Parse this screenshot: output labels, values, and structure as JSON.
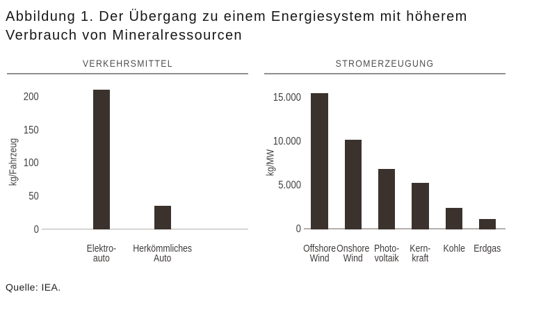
{
  "figure": {
    "title_line1": "Abbildung 1. Der Übergang zu einem Energiesystem mit höherem",
    "title_line2": "Verbrauch von Mineralressourcen",
    "source": "Quelle: IEA."
  },
  "colors": {
    "bar": "#3b322d",
    "axis_line": "#b4b0ad",
    "header_rule": "#8f8f8f"
  },
  "chart_data": [
    {
      "type": "bar",
      "title": "VERKEHRSMITTEL",
      "ylabel": "kg/Fahrzeug",
      "xlabel": "",
      "categories": [
        [
          "Elektro-",
          "auto"
        ],
        [
          "Herkömmliches",
          "Auto"
        ]
      ],
      "values": [
        210,
        35
      ],
      "ylim": [
        0,
        200
      ],
      "yticks": [
        0,
        50,
        100,
        150,
        200
      ],
      "ytick_labels": [
        "0",
        "50",
        "100",
        "150",
        "200"
      ],
      "grid": false,
      "legend": "none"
    },
    {
      "type": "bar",
      "title": "STROMERZEUGUNG",
      "ylabel": "kg/MW",
      "xlabel": "",
      "categories": [
        [
          "Offshore",
          "Wind"
        ],
        [
          "Onshore",
          "Wind"
        ],
        [
          "Photo-",
          "voltaik"
        ],
        [
          "Kern-",
          "kraft"
        ],
        [
          "Kohle"
        ],
        [
          "Erdgas"
        ]
      ],
      "values": [
        15400,
        10100,
        6800,
        5200,
        2400,
        1100
      ],
      "ylim": [
        0,
        15000
      ],
      "yticks": [
        0,
        5000,
        10000,
        15000
      ],
      "ytick_labels": [
        "0",
        "5.000",
        "10.000",
        "15.000"
      ],
      "grid": false,
      "legend": "none"
    }
  ]
}
